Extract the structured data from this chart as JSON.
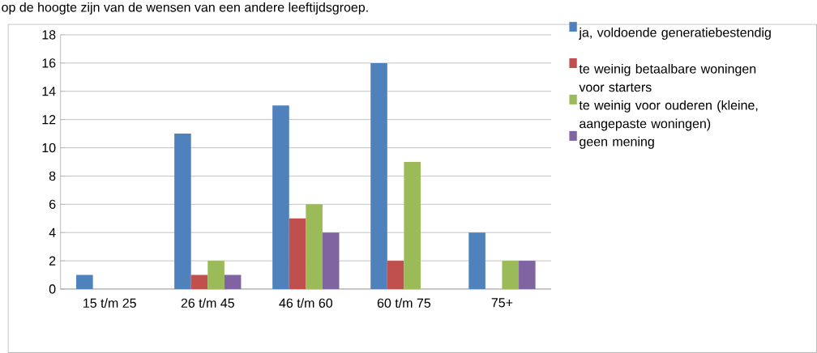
{
  "chart_data": {
    "type": "bar",
    "annotations": [
      "op de hoogte zijn van de wensen van een andere leeftijdsgroep."
    ],
    "categories": [
      "15 t/m 25",
      "26 t/m 45",
      "46 t/m 60",
      "60 t/m 75",
      "75+"
    ],
    "series": [
      {
        "name": "ja, voldoende generatiebestendig",
        "color": "#4f81bd",
        "values": [
          1,
          11,
          13,
          16,
          4
        ]
      },
      {
        "name": "te weinig betaalbare woningen voor starters",
        "color": "#c0504d",
        "values": [
          0,
          1,
          5,
          2,
          0
        ]
      },
      {
        "name": "te weinig voor ouderen (kleine, aangepaste woningen)",
        "color": "#9bbb59",
        "values": [
          0,
          2,
          6,
          9,
          2
        ]
      },
      {
        "name": "geen mening",
        "color": "#8064a2",
        "values": [
          0,
          1,
          4,
          0,
          2
        ]
      }
    ],
    "ylim": [
      0,
      18
    ],
    "yticks": [
      0,
      2,
      4,
      6,
      8,
      10,
      12,
      14,
      16,
      18
    ],
    "grid": "y",
    "legend": "right"
  }
}
